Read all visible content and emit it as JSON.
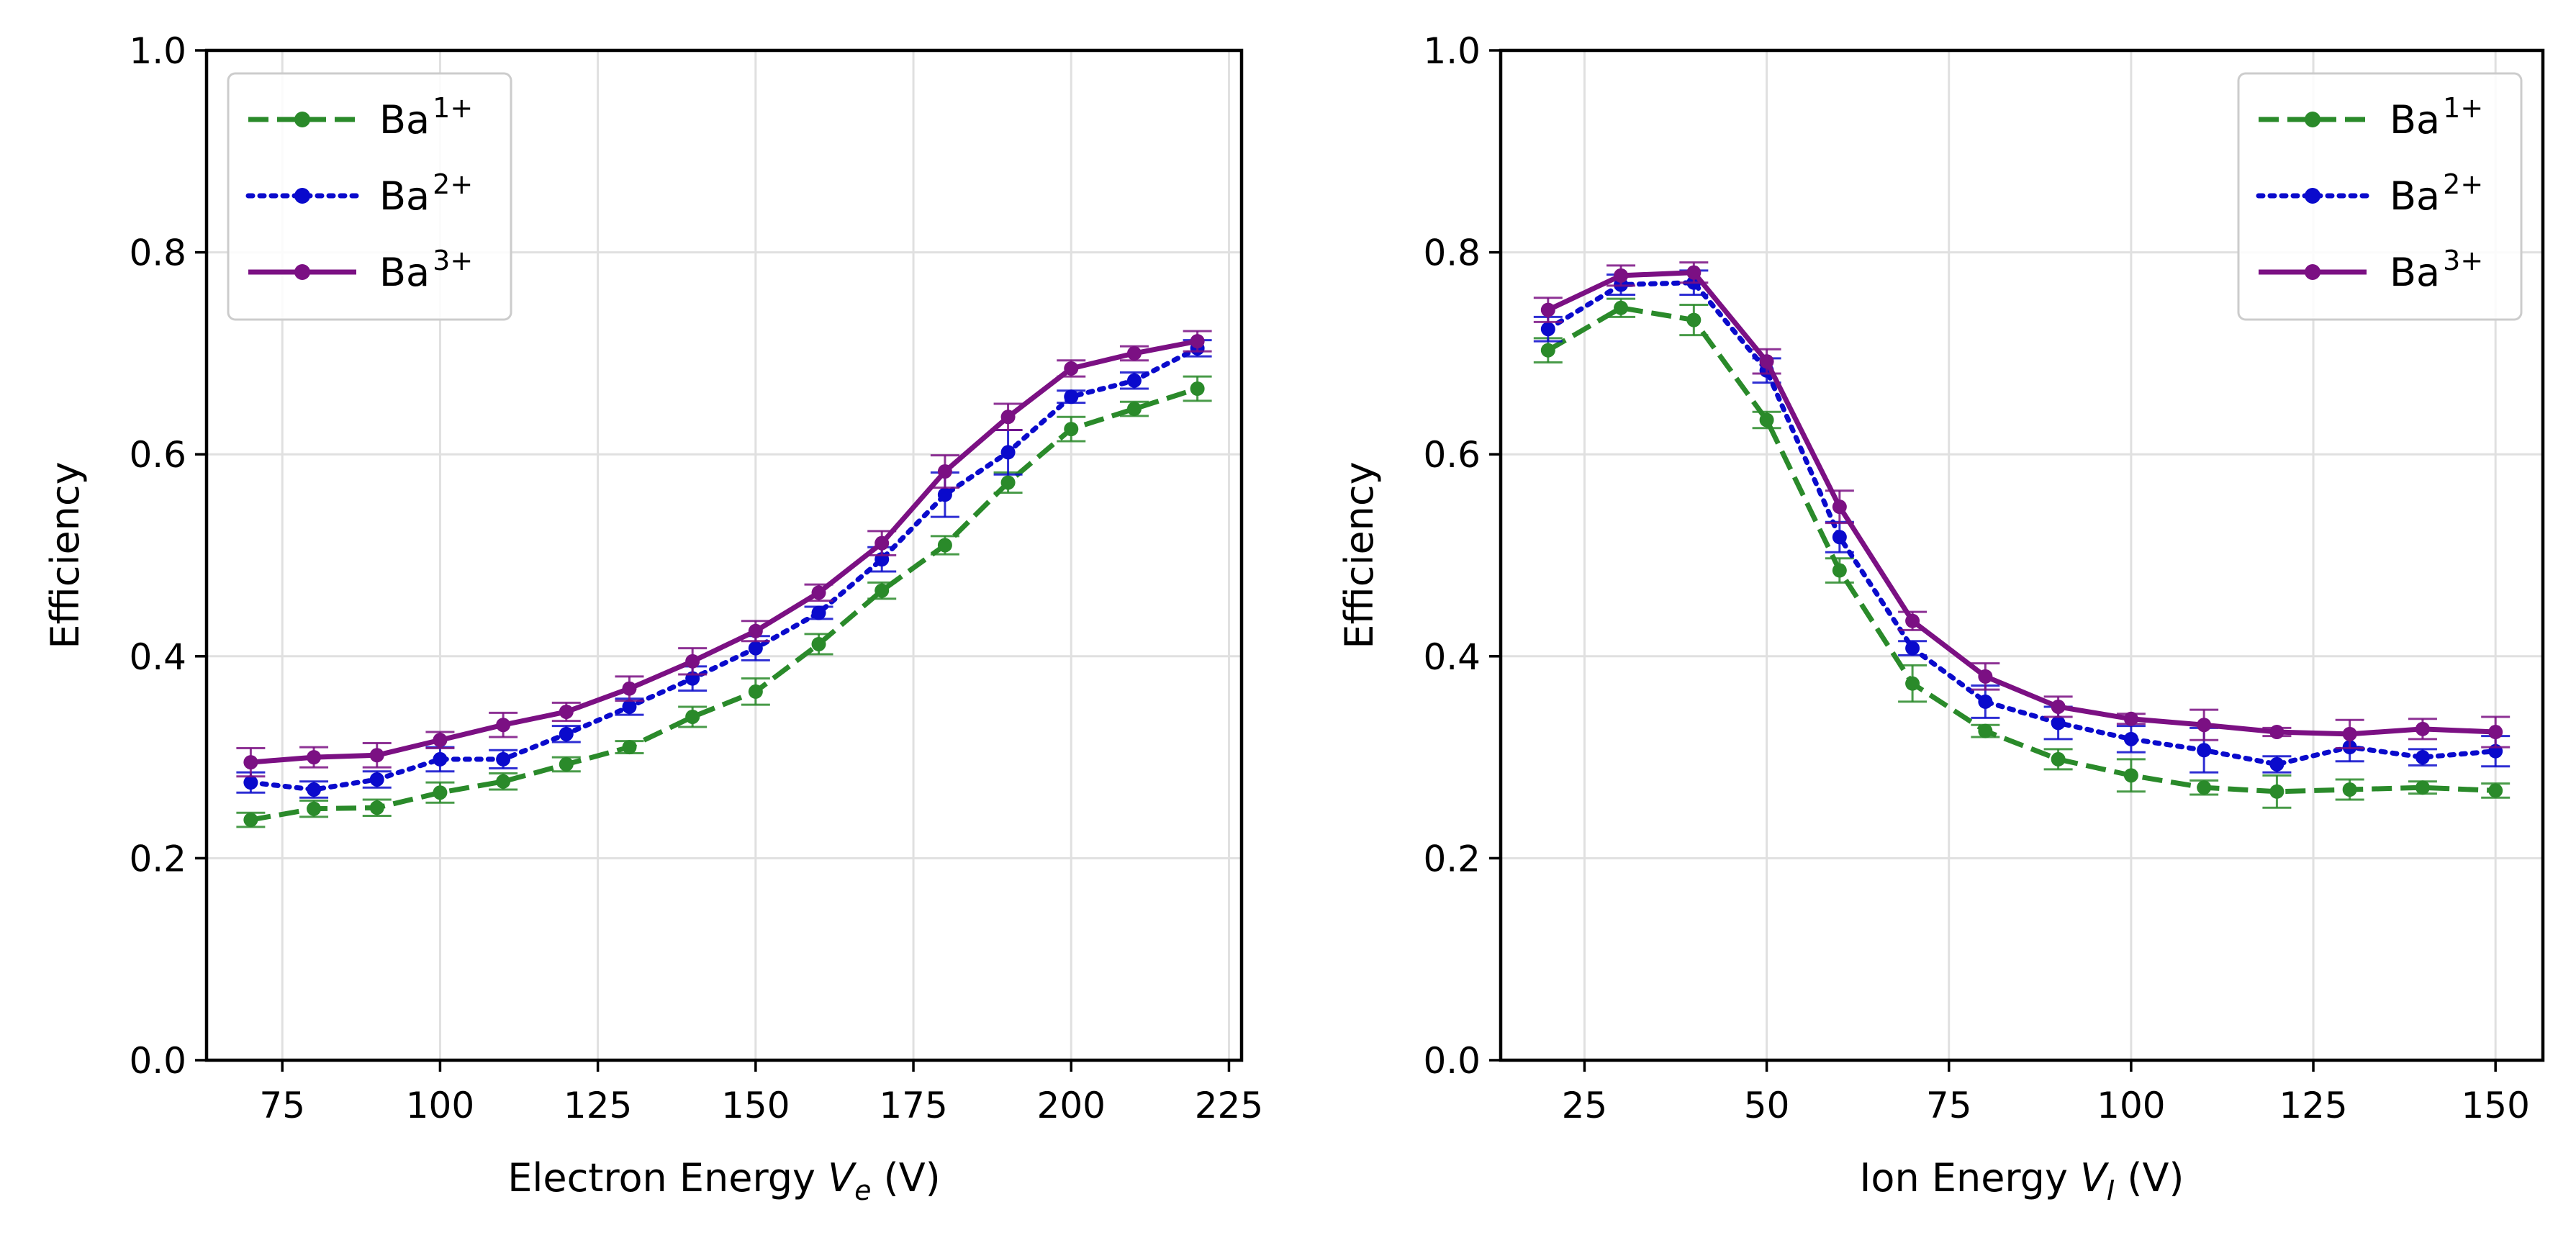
{
  "chart_data": [
    {
      "type": "line",
      "xlabel_main": "Electron Energy ",
      "xlabel_var": "V",
      "xlabel_sub": "e",
      "xlabel_unit": " (V)",
      "ylabel": "Efficiency",
      "xlim": [
        63,
        227
      ],
      "ylim": [
        0,
        1
      ],
      "xticks": [
        75,
        100,
        125,
        150,
        175,
        200,
        225
      ],
      "yticks": [
        0.0,
        0.2,
        0.4,
        0.6,
        0.8,
        1.0
      ],
      "ytick_labels": [
        "0.0",
        "0.2",
        "0.4",
        "0.6",
        "0.8",
        "1.0"
      ],
      "grid": true,
      "legend_position": "top-left",
      "x": [
        70,
        80,
        90,
        100,
        110,
        120,
        130,
        140,
        150,
        160,
        170,
        180,
        190,
        200,
        210,
        220
      ],
      "series": [
        {
          "label_base": "Ba",
          "label_sup": "1+",
          "color": "#2a8a2a",
          "dash": "dashed",
          "values": [
            0.238,
            0.249,
            0.25,
            0.265,
            0.276,
            0.293,
            0.31,
            0.34,
            0.365,
            0.412,
            0.465,
            0.51,
            0.572,
            0.625,
            0.645,
            0.665
          ],
          "errors": [
            0.007,
            0.008,
            0.008,
            0.01,
            0.008,
            0.007,
            0.006,
            0.01,
            0.013,
            0.01,
            0.008,
            0.009,
            0.01,
            0.012,
            0.007,
            0.012
          ]
        },
        {
          "label_base": "Ba",
          "label_sup": "2+",
          "color": "#0a0acc",
          "dash": "dotted",
          "values": [
            0.275,
            0.268,
            0.278,
            0.298,
            0.298,
            0.323,
            0.35,
            0.378,
            0.408,
            0.443,
            0.496,
            0.56,
            0.602,
            0.657,
            0.673,
            0.705
          ],
          "errors": [
            0.01,
            0.008,
            0.008,
            0.012,
            0.009,
            0.008,
            0.008,
            0.012,
            0.012,
            0.006,
            0.012,
            0.022,
            0.022,
            0.006,
            0.008,
            0.008
          ]
        },
        {
          "label_base": "Ba",
          "label_sup": "3+",
          "color": "#7b1083",
          "dash": "solid",
          "values": [
            0.295,
            0.3,
            0.302,
            0.317,
            0.332,
            0.345,
            0.368,
            0.395,
            0.425,
            0.463,
            0.512,
            0.583,
            0.637,
            0.685,
            0.7,
            0.712
          ],
          "errors": [
            0.014,
            0.01,
            0.012,
            0.008,
            0.012,
            0.009,
            0.012,
            0.013,
            0.01,
            0.008,
            0.012,
            0.016,
            0.013,
            0.008,
            0.007,
            0.01
          ]
        }
      ]
    },
    {
      "type": "line",
      "xlabel_main": "Ion Energy ",
      "xlabel_var": "V",
      "xlabel_sub": "I",
      "xlabel_unit": " (V)",
      "ylabel": "Efficiency",
      "xlim": [
        13.5,
        156.5
      ],
      "ylim": [
        0,
        1
      ],
      "xticks": [
        25,
        50,
        75,
        100,
        125,
        150
      ],
      "yticks": [
        0.0,
        0.2,
        0.4,
        0.6,
        0.8,
        1.0
      ],
      "ytick_labels": [
        "0.0",
        "0.2",
        "0.4",
        "0.6",
        "0.8",
        "1.0"
      ],
      "grid": true,
      "legend_position": "top-right",
      "x": [
        20,
        30,
        40,
        50,
        60,
        70,
        80,
        90,
        100,
        110,
        120,
        130,
        140,
        150
      ],
      "series": [
        {
          "label_base": "Ba",
          "label_sup": "1+",
          "color": "#2a8a2a",
          "dash": "dashed",
          "values": [
            0.703,
            0.745,
            0.733,
            0.634,
            0.485,
            0.373,
            0.326,
            0.298,
            0.282,
            0.27,
            0.266,
            0.268,
            0.27,
            0.267
          ],
          "errors": [
            0.012,
            0.009,
            0.015,
            0.008,
            0.012,
            0.018,
            0.006,
            0.01,
            0.016,
            0.007,
            0.016,
            0.01,
            0.006,
            0.007
          ]
        },
        {
          "label_base": "Ba",
          "label_sup": "2+",
          "color": "#0a0acc",
          "dash": "dotted",
          "values": [
            0.724,
            0.768,
            0.77,
            0.683,
            0.518,
            0.408,
            0.355,
            0.334,
            0.318,
            0.307,
            0.293,
            0.31,
            0.3,
            0.306
          ],
          "errors": [
            0.012,
            0.01,
            0.012,
            0.012,
            0.015,
            0.007,
            0.016,
            0.016,
            0.013,
            0.022,
            0.008,
            0.014,
            0.008,
            0.015
          ]
        },
        {
          "label_base": "Ba",
          "label_sup": "3+",
          "color": "#7b1083",
          "dash": "solid",
          "values": [
            0.743,
            0.777,
            0.78,
            0.692,
            0.548,
            0.435,
            0.38,
            0.35,
            0.338,
            0.332,
            0.325,
            0.323,
            0.328,
            0.325
          ],
          "errors": [
            0.012,
            0.01,
            0.01,
            0.012,
            0.016,
            0.009,
            0.013,
            0.01,
            0.005,
            0.015,
            0.004,
            0.014,
            0.01,
            0.015
          ]
        }
      ]
    }
  ]
}
